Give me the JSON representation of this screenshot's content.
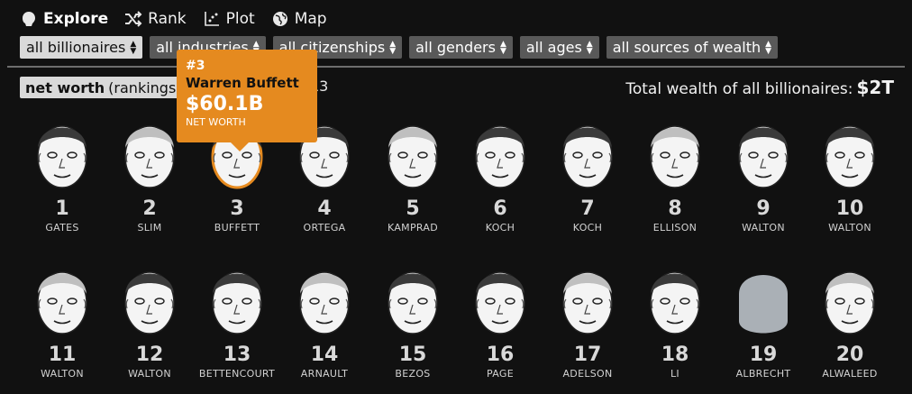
{
  "nav": [
    {
      "label": "Explore",
      "icon": "explore-icon",
      "active": true
    },
    {
      "label": "Rank",
      "icon": "shuffle-icon",
      "active": false
    },
    {
      "label": "Plot",
      "icon": "scatter-icon",
      "active": false
    },
    {
      "label": "Map",
      "icon": "globe-icon",
      "active": false
    }
  ],
  "filters": [
    {
      "label": "all billionaires",
      "active": true
    },
    {
      "label": "all industries",
      "active": false
    },
    {
      "label": "all citizenships",
      "active": false
    },
    {
      "label": "all genders",
      "active": false
    },
    {
      "label": "all ages",
      "active": false
    },
    {
      "label": "all sources of wealth",
      "active": false
    }
  ],
  "sort": {
    "bold": "net worth",
    "rest": "(rankings)",
    "tail": "13"
  },
  "total": {
    "label": "Total wealth of all billionaires:",
    "value": "$2T"
  },
  "tooltip": {
    "rank": "#3",
    "name": "Warren Buffett",
    "value": "$60.1B",
    "label": "NET WORTH"
  },
  "people": [
    {
      "rank": "1",
      "name": "GATES"
    },
    {
      "rank": "2",
      "name": "SLIM"
    },
    {
      "rank": "3",
      "name": "BUFFETT"
    },
    {
      "rank": "4",
      "name": "ORTEGA"
    },
    {
      "rank": "5",
      "name": "KAMPRAD"
    },
    {
      "rank": "6",
      "name": "KOCH"
    },
    {
      "rank": "7",
      "name": "KOCH"
    },
    {
      "rank": "8",
      "name": "ELLISON"
    },
    {
      "rank": "9",
      "name": "WALTON"
    },
    {
      "rank": "10",
      "name": "WALTON"
    },
    {
      "rank": "11",
      "name": "WALTON"
    },
    {
      "rank": "12",
      "name": "WALTON"
    },
    {
      "rank": "13",
      "name": "BETTENCOURT"
    },
    {
      "rank": "14",
      "name": "ARNAULT"
    },
    {
      "rank": "15",
      "name": "BEZOS"
    },
    {
      "rank": "16",
      "name": "PAGE"
    },
    {
      "rank": "17",
      "name": "ADELSON"
    },
    {
      "rank": "18",
      "name": "LI"
    },
    {
      "rank": "19",
      "name": "ALBRECHT"
    },
    {
      "rank": "20",
      "name": "ALWALEED"
    }
  ],
  "colors": {
    "background": "#111111",
    "highlight": "#e58a1f",
    "filter_bg": "#595959",
    "filter_active_bg": "#d9d9d9"
  }
}
